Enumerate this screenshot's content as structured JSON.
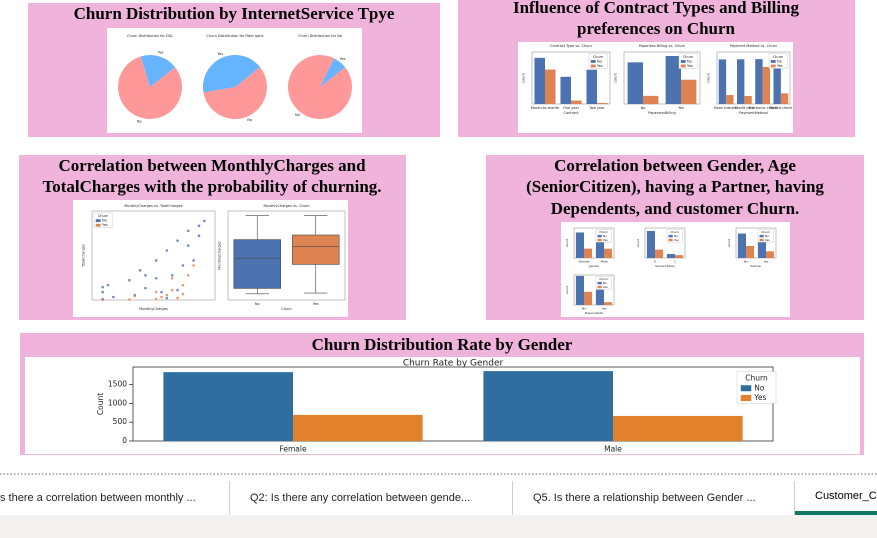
{
  "panels": [
    {
      "title_lines": [
        "Churn Distribution by InternetService Tpye"
      ]
    },
    {
      "title_lines": [
        "Influence of Contract Types and Billing",
        "preferences on Churn"
      ]
    },
    {
      "title_lines": [
        "Correlation between MonthlyCharges and",
        "TotalCharges with the probability of churning."
      ]
    },
    {
      "title_lines": [
        "Correlation between Gender, Age",
        "(SeniorCitizen), having a Partner, having",
        "Dependents, and customer Churn."
      ]
    },
    {
      "title_lines": [
        "Churn Distribution Rate by Gender"
      ]
    }
  ],
  "chart_data": [
    {
      "type": "pie",
      "title": "Churn Distribution for DSL",
      "categories": [
        "No",
        "Yes"
      ],
      "values": [
        81,
        19
      ],
      "colors": [
        "#ff9999",
        "#66b3ff"
      ]
    },
    {
      "type": "pie",
      "title": "Churn Distribution for Fiber optic",
      "categories": [
        "No",
        "Yes"
      ],
      "values": [
        58,
        42
      ],
      "colors": [
        "#ff9999",
        "#66b3ff"
      ]
    },
    {
      "type": "pie",
      "title": "Churn Distribution for No",
      "categories": [
        "No",
        "Yes"
      ],
      "values": [
        93,
        7
      ],
      "colors": [
        "#ff9999",
        "#66b3ff"
      ]
    },
    {
      "type": "bar",
      "title": "Contract Type vs. Churn",
      "x_label": "Contract",
      "y_label": "count",
      "legend_title": "Churn",
      "categories": [
        "Month-to-month",
        "One year",
        "Two year"
      ],
      "ylim": [
        0,
        2500
      ],
      "series": [
        {
          "name": "No",
          "color": "#4c72b0",
          "values": [
            2220,
            1307,
            1647
          ]
        },
        {
          "name": "Yes",
          "color": "#dd8452",
          "values": [
            1655,
            166,
            48
          ]
        }
      ]
    },
    {
      "type": "bar",
      "title": "Paperless Billing vs. Churn",
      "x_label": "PaperlessBilling",
      "y_label": "count",
      "legend_title": "Churn",
      "categories": [
        "No",
        "Yes"
      ],
      "ylim": [
        0,
        3000
      ],
      "series": [
        {
          "name": "No",
          "color": "#4c72b0",
          "values": [
            2403,
            2771
          ]
        },
        {
          "name": "Yes",
          "color": "#dd8452",
          "values": [
            469,
            1400
          ]
        }
      ]
    },
    {
      "type": "bar",
      "title": "Payment Method vs. Churn",
      "x_label": "PaymentMethod",
      "y_label": "count",
      "legend_title": "Churn",
      "categories": [
        "Bank transfer",
        "Credit card",
        "Electronic check",
        "Mailed check"
      ],
      "ylim": [
        0,
        1500
      ],
      "series": [
        {
          "name": "No",
          "color": "#4c72b0",
          "values": [
            1286,
            1290,
            1294,
            1304
          ]
        },
        {
          "name": "Yes",
          "color": "#dd8452",
          "values": [
            258,
            232,
            1071,
            308
          ]
        }
      ]
    },
    {
      "type": "scatter",
      "title": "MonthlyCharges vs. TotalCharges",
      "x_label": "MonthlyCharges",
      "y_label": "TotalCharges",
      "legend_title": "Churn",
      "xlim": [
        10,
        125
      ],
      "ylim": [
        0,
        9000
      ],
      "series": [
        {
          "name": "No",
          "color": "#4c72b0",
          "x": [
            20,
            25,
            20,
            30,
            45,
            50,
            55,
            60,
            70,
            75,
            80,
            85,
            90,
            95,
            100,
            105,
            110,
            115,
            20,
            60,
            80,
            100,
            70,
            90,
            110
          ],
          "values": [
            100,
            1500,
            800,
            300,
            2000,
            500,
            3000,
            1200,
            4000,
            800,
            5000,
            2500,
            6000,
            3500,
            7000,
            4000,
            7500,
            8000,
            1300,
            2500,
            200,
            5500,
            2200,
            1000,
            6500
          ]
        },
        {
          "name": "Yes",
          "color": "#dd8452",
          "x": [
            70,
            75,
            80,
            85,
            90,
            95,
            100,
            45,
            50,
            105,
            70,
            85,
            95,
            20
          ],
          "values": [
            100,
            300,
            500,
            1000,
            200,
            1500,
            2500,
            50,
            400,
            3500,
            800,
            2200,
            600,
            20
          ]
        }
      ]
    },
    {
      "type": "box",
      "title": "MonthlyCharges vs. Churn",
      "x_label": "Churn",
      "y_label": "MonthlyCharges",
      "categories": [
        "No",
        "Yes"
      ],
      "colors": [
        "#4c72b0",
        "#dd8452"
      ],
      "ylim": [
        10,
        125
      ],
      "boxes": [
        {
          "min": 18,
          "q1": 25,
          "median": 64,
          "q3": 88,
          "max": 119
        },
        {
          "min": 19,
          "q1": 56,
          "median": 79,
          "q3": 94,
          "max": 119
        }
      ]
    },
    {
      "type": "bar",
      "x_label": "gender",
      "y_label": "count",
      "legend_title": "Churn",
      "categories": [
        "Female",
        "Male"
      ],
      "ylim": [
        0,
        3000
      ],
      "series": [
        {
          "name": "No",
          "color": "#4c72b0",
          "values": [
            2549,
            2625
          ]
        },
        {
          "name": "Yes",
          "color": "#dd8452",
          "values": [
            939,
            930
          ]
        }
      ]
    },
    {
      "type": "bar",
      "x_label": "SeniorCitizen",
      "y_label": "count",
      "legend_title": "Churn",
      "categories": [
        "0",
        "1"
      ],
      "ylim": [
        0,
        5000
      ],
      "series": [
        {
          "name": "No",
          "color": "#4c72b0",
          "values": [
            4508,
            666
          ]
        },
        {
          "name": "Yes",
          "color": "#dd8452",
          "values": [
            1393,
            476
          ]
        }
      ]
    },
    {
      "type": "bar",
      "x_label": "Partner",
      "y_label": "count",
      "legend_title": "Churn",
      "categories": [
        "No",
        "Yes"
      ],
      "ylim": [
        0,
        3000
      ],
      "series": [
        {
          "name": "No",
          "color": "#4c72b0",
          "values": [
            2441,
            2733
          ]
        },
        {
          "name": "Yes",
          "color": "#dd8452",
          "values": [
            1200,
            669
          ]
        }
      ]
    },
    {
      "type": "bar",
      "x_label": "Dependents",
      "y_label": "count",
      "legend_title": "Churn",
      "categories": [
        "No",
        "Yes"
      ],
      "ylim": [
        0,
        3500
      ],
      "series": [
        {
          "name": "No",
          "color": "#4c72b0",
          "values": [
            3390,
            1784
          ]
        },
        {
          "name": "Yes",
          "color": "#dd8452",
          "values": [
            1543,
            326
          ]
        }
      ]
    },
    {
      "type": "bar",
      "title": "Churn Rate by Gender",
      "x_label": "gender",
      "y_label": "Count",
      "legend_title": "Churn",
      "categories": [
        "Female",
        "Male"
      ],
      "ylim": [
        0,
        1970
      ],
      "yticks": [
        0,
        500,
        1000,
        1500
      ],
      "series": [
        {
          "name": "No",
          "color": "#2f6f9f",
          "values": [
            1833,
            1860
          ]
        },
        {
          "name": "Yes",
          "color": "#e1812c",
          "values": [
            695,
            667
          ]
        }
      ]
    }
  ],
  "tabs": [
    "s there a correlation between monthly ...",
    "Q2: Is there any correlation between gende...",
    "Q5. Is there a relationship between Gender ...",
    "Customer_C"
  ]
}
